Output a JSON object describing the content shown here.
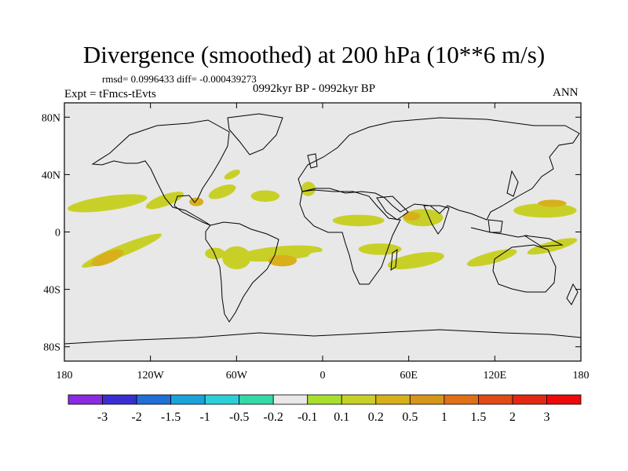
{
  "title": "Divergence (smoothed) at 200 hPa (10**6 m/s)",
  "stats": "rmsd= 0.0996433 diff= -0.000439273",
  "experiment": "Expt = tFmcs-tEvts",
  "period": "0992kyr BP - 0992kyr BP",
  "season": "ANN",
  "y_ticks": [
    {
      "lat": 80,
      "label": "80N"
    },
    {
      "lat": 40,
      "label": "40N"
    },
    {
      "lat": 0,
      "label": "0"
    },
    {
      "lat": -40,
      "label": "40S"
    },
    {
      "lat": -80,
      "label": "80S"
    }
  ],
  "x_ticks": [
    {
      "lon": -180,
      "label": "180"
    },
    {
      "lon": -120,
      "label": "120W"
    },
    {
      "lon": -60,
      "label": "60W"
    },
    {
      "lon": 0,
      "label": "0"
    },
    {
      "lon": 60,
      "label": "60E"
    },
    {
      "lon": 120,
      "label": "120E"
    },
    {
      "lon": 180,
      "label": "180"
    }
  ],
  "colorbar": {
    "colors": [
      "#8a2be2",
      "#3a2ed0",
      "#1f6fd6",
      "#1aa3d8",
      "#2ccfd8",
      "#35d9a8",
      "#e8e8e8",
      "#a8df2e",
      "#c8d028",
      "#d8b01c",
      "#d6961a",
      "#e07018",
      "#e04a16",
      "#e22812",
      "#ee0a0a"
    ],
    "labels": [
      "-3",
      "-2",
      "-1.5",
      "-1",
      "-0.5",
      "-0.2",
      "-0.1",
      "0.1",
      "0.2",
      "0.5",
      "1",
      "1.5",
      "2",
      "3"
    ]
  },
  "chart_data": {
    "type": "heatmap",
    "title": "Divergence (smoothed) at 200 hPa (10**6 m/s)",
    "units": "10**6 m/s",
    "projection": "cylindrical equidistant",
    "lon_range": [
      -180,
      180
    ],
    "lat_range": [
      -90,
      90
    ],
    "levels": [
      -3,
      -2,
      -1.5,
      -1,
      -0.5,
      -0.2,
      -0.1,
      0.1,
      0.2,
      0.5,
      1,
      1.5,
      2,
      3
    ],
    "background_value_band": "-0.1 to 0.1",
    "regions": [
      {
        "lon": -150,
        "lat": 20,
        "rx": 28,
        "ry": 5,
        "rot": -8,
        "level": 0.15
      },
      {
        "lon": -110,
        "lat": 22,
        "rx": 14,
        "ry": 4,
        "rot": -20,
        "level": 0.15
      },
      {
        "lon": -88,
        "lat": 21,
        "rx": 5,
        "ry": 3,
        "rot": 0,
        "level": 0.3
      },
      {
        "lon": -70,
        "lat": 28,
        "rx": 10,
        "ry": 4,
        "rot": -20,
        "level": 0.15
      },
      {
        "lon": -63,
        "lat": 40,
        "rx": 6,
        "ry": 2.5,
        "rot": -25,
        "level": 0.15
      },
      {
        "lon": -40,
        "lat": 25,
        "rx": 10,
        "ry": 4,
        "rot": 0,
        "level": 0.15
      },
      {
        "lon": -10,
        "lat": 30,
        "rx": 5,
        "ry": 5,
        "rot": 0,
        "level": 0.15
      },
      {
        "lon": 30,
        "lat": 17,
        "rx": 40,
        "ry": 6,
        "rot": 5,
        "level": -0.15
      },
      {
        "lon": 90,
        "lat": 22,
        "rx": 14,
        "ry": 4,
        "rot": 0,
        "level": -0.15
      },
      {
        "lon": -140,
        "lat": 5,
        "rx": 38,
        "ry": 3.5,
        "rot": 3,
        "level": -0.15
      },
      {
        "lon": -70,
        "lat": 3,
        "rx": 35,
        "ry": 3.5,
        "rot": 0,
        "level": -0.15
      },
      {
        "lon": -30,
        "lat": 0,
        "rx": 22,
        "ry": 5,
        "rot": 0,
        "level": -0.15
      },
      {
        "lon": 25,
        "lat": 8,
        "rx": 18,
        "ry": 4,
        "rot": 0,
        "level": 0.15
      },
      {
        "lon": 70,
        "lat": 10,
        "rx": 14,
        "ry": 6,
        "rot": 0,
        "level": 0.15
      },
      {
        "lon": 62,
        "lat": 11,
        "rx": 6,
        "ry": 3,
        "rot": 0,
        "level": 0.3
      },
      {
        "lon": 130,
        "lat": 2,
        "rx": 10,
        "ry": 6,
        "rot": 0,
        "level": -0.15
      },
      {
        "lon": 155,
        "lat": 15,
        "rx": 22,
        "ry": 5,
        "rot": 0,
        "level": 0.15
      },
      {
        "lon": 160,
        "lat": 20,
        "rx": 10,
        "ry": 2.5,
        "rot": 0,
        "level": 0.3
      },
      {
        "lon": 165,
        "lat": 0,
        "rx": 15,
        "ry": 4,
        "rot": 0,
        "level": -0.15
      },
      {
        "lon": -140,
        "lat": -13,
        "rx": 30,
        "ry": 4,
        "rot": -22,
        "level": 0.15
      },
      {
        "lon": -150,
        "lat": -18,
        "rx": 12,
        "ry": 4,
        "rot": -22,
        "level": 0.3
      },
      {
        "lon": -100,
        "lat": -12,
        "rx": 16,
        "ry": 3.5,
        "rot": -10,
        "level": -0.15
      },
      {
        "lon": -75,
        "lat": -15,
        "rx": 7,
        "ry": 4,
        "rot": 0,
        "level": 0.15
      },
      {
        "lon": -60,
        "lat": -18,
        "rx": 10,
        "ry": 8,
        "rot": 0,
        "level": 0.15
      },
      {
        "lon": -30,
        "lat": -15,
        "rx": 30,
        "ry": 5,
        "rot": -5,
        "level": 0.15
      },
      {
        "lon": -28,
        "lat": -20,
        "rx": 10,
        "ry": 4,
        "rot": 0,
        "level": 0.3
      },
      {
        "lon": 5,
        "lat": -18,
        "rx": 15,
        "ry": 4,
        "rot": 5,
        "level": -0.15
      },
      {
        "lon": 40,
        "lat": -12,
        "rx": 15,
        "ry": 4,
        "rot": 0,
        "level": 0.15
      },
      {
        "lon": 65,
        "lat": -20,
        "rx": 20,
        "ry": 5,
        "rot": -10,
        "level": 0.15
      },
      {
        "lon": 118,
        "lat": -18,
        "rx": 18,
        "ry": 4,
        "rot": -15,
        "level": 0.15
      },
      {
        "lon": 160,
        "lat": -10,
        "rx": 18,
        "ry": 3.5,
        "rot": -15,
        "level": 0.15
      },
      {
        "lon": 150,
        "lat": -28,
        "rx": 22,
        "ry": 3.5,
        "rot": -8,
        "level": -0.15
      }
    ]
  }
}
